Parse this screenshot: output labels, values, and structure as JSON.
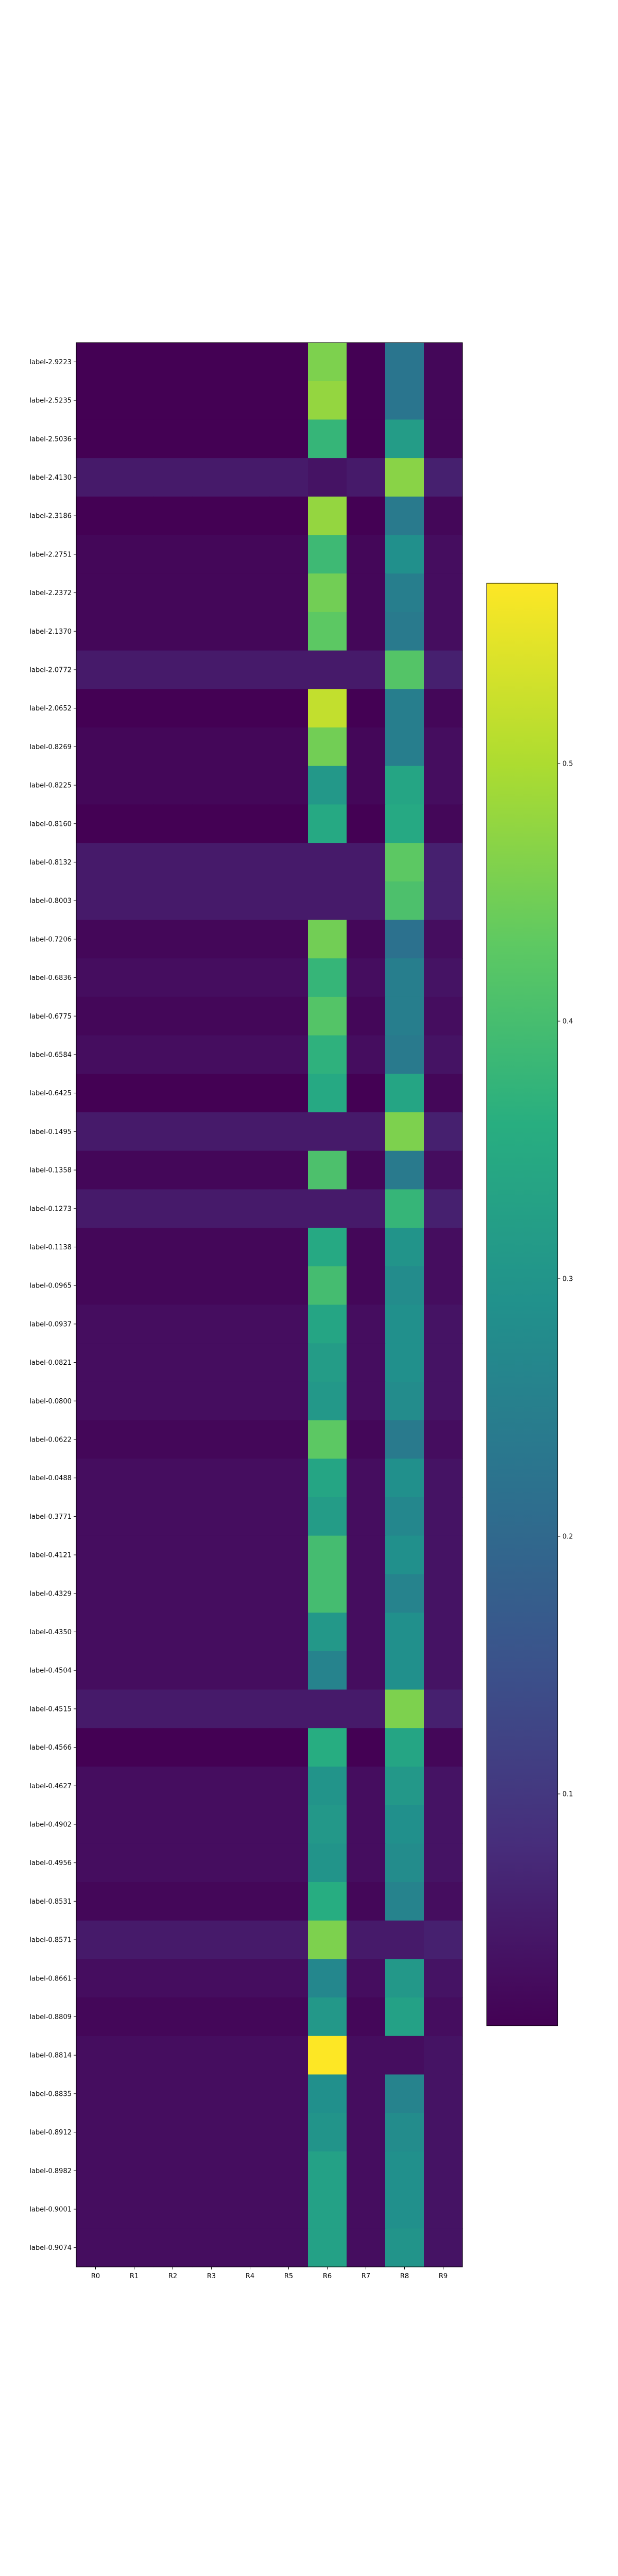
{
  "chart_data": {
    "type": "heatmap",
    "title": "",
    "xlabel": "",
    "ylabel": "",
    "x_categories": [
      "R0",
      "R1",
      "R2",
      "R3",
      "R4",
      "R5",
      "R6",
      "R7",
      "R8",
      "R9"
    ],
    "y_categories": [
      "label-2.9223",
      "label-2.5235",
      "label-2.5036",
      "label-2.4130",
      "label-2.3186",
      "label-2.2751",
      "label-2.2372",
      "label-2.1370",
      "label-2.0772",
      "label-2.0652",
      "label-0.8269",
      "label-0.8225",
      "label-0.8160",
      "label-0.8132",
      "label-0.8003",
      "label-0.7206",
      "label-0.6836",
      "label-0.6775",
      "label-0.6584",
      "label-0.6425",
      "label-0.1495",
      "label-0.1358",
      "label-0.1273",
      "label-0.1138",
      "label-0.0965",
      "label-0.0937",
      "label-0.0821",
      "label-0.0800",
      "label-0.0622",
      "label-0.0488",
      "label-0.3771",
      "label-0.4121",
      "label-0.4329",
      "label-0.4350",
      "label-0.4504",
      "label-0.4515",
      "label-0.4566",
      "label-0.4627",
      "label-0.4902",
      "label-0.4956",
      "label-0.8531",
      "label-0.8571",
      "label-0.8661",
      "label-0.8809",
      "label-0.8814",
      "label-0.8835",
      "label-0.8912",
      "label-0.8982",
      "label-0.9001",
      "label-0.9074"
    ],
    "values": [
      [
        0.01,
        0.01,
        0.01,
        0.01,
        0.01,
        0.01,
        0.46,
        0.01,
        0.23,
        0.02
      ],
      [
        0.01,
        0.01,
        0.01,
        0.01,
        0.01,
        0.01,
        0.48,
        0.01,
        0.23,
        0.02
      ],
      [
        0.01,
        0.01,
        0.01,
        0.01,
        0.01,
        0.01,
        0.38,
        0.01,
        0.32,
        0.02
      ],
      [
        0.05,
        0.05,
        0.05,
        0.05,
        0.05,
        0.05,
        0.04,
        0.05,
        0.47,
        0.06
      ],
      [
        0.01,
        0.01,
        0.01,
        0.01,
        0.01,
        0.01,
        0.48,
        0.01,
        0.24,
        0.02
      ],
      [
        0.02,
        0.02,
        0.02,
        0.02,
        0.02,
        0.02,
        0.39,
        0.02,
        0.29,
        0.03
      ],
      [
        0.02,
        0.02,
        0.02,
        0.02,
        0.02,
        0.02,
        0.45,
        0.02,
        0.25,
        0.03
      ],
      [
        0.02,
        0.02,
        0.02,
        0.02,
        0.02,
        0.02,
        0.43,
        0.02,
        0.24,
        0.03
      ],
      [
        0.05,
        0.05,
        0.05,
        0.05,
        0.05,
        0.05,
        0.05,
        0.05,
        0.42,
        0.06
      ],
      [
        0.01,
        0.01,
        0.01,
        0.01,
        0.01,
        0.01,
        0.52,
        0.01,
        0.25,
        0.02
      ],
      [
        0.02,
        0.02,
        0.02,
        0.02,
        0.02,
        0.02,
        0.45,
        0.02,
        0.25,
        0.03
      ],
      [
        0.02,
        0.02,
        0.02,
        0.02,
        0.02,
        0.02,
        0.31,
        0.02,
        0.34,
        0.03
      ],
      [
        0.01,
        0.01,
        0.01,
        0.01,
        0.01,
        0.01,
        0.35,
        0.01,
        0.35,
        0.02
      ],
      [
        0.05,
        0.05,
        0.05,
        0.05,
        0.05,
        0.05,
        0.05,
        0.05,
        0.43,
        0.06
      ],
      [
        0.05,
        0.05,
        0.05,
        0.05,
        0.05,
        0.05,
        0.05,
        0.05,
        0.41,
        0.06
      ],
      [
        0.02,
        0.02,
        0.02,
        0.02,
        0.02,
        0.02,
        0.45,
        0.02,
        0.22,
        0.03
      ],
      [
        0.03,
        0.03,
        0.03,
        0.03,
        0.03,
        0.03,
        0.38,
        0.03,
        0.25,
        0.04
      ],
      [
        0.02,
        0.02,
        0.02,
        0.02,
        0.02,
        0.02,
        0.42,
        0.02,
        0.25,
        0.03
      ],
      [
        0.03,
        0.03,
        0.03,
        0.03,
        0.03,
        0.03,
        0.37,
        0.03,
        0.24,
        0.04
      ],
      [
        0.01,
        0.01,
        0.01,
        0.01,
        0.01,
        0.01,
        0.35,
        0.01,
        0.34,
        0.02
      ],
      [
        0.05,
        0.05,
        0.05,
        0.05,
        0.05,
        0.05,
        0.05,
        0.05,
        0.46,
        0.06
      ],
      [
        0.02,
        0.02,
        0.02,
        0.02,
        0.02,
        0.02,
        0.41,
        0.02,
        0.24,
        0.03
      ],
      [
        0.05,
        0.05,
        0.05,
        0.05,
        0.05,
        0.05,
        0.05,
        0.05,
        0.38,
        0.06
      ],
      [
        0.02,
        0.02,
        0.02,
        0.02,
        0.02,
        0.02,
        0.35,
        0.02,
        0.3,
        0.03
      ],
      [
        0.02,
        0.02,
        0.02,
        0.02,
        0.02,
        0.02,
        0.4,
        0.02,
        0.28,
        0.03
      ],
      [
        0.03,
        0.03,
        0.03,
        0.03,
        0.03,
        0.03,
        0.34,
        0.03,
        0.29,
        0.04
      ],
      [
        0.03,
        0.03,
        0.03,
        0.03,
        0.03,
        0.03,
        0.32,
        0.03,
        0.29,
        0.04
      ],
      [
        0.03,
        0.03,
        0.03,
        0.03,
        0.03,
        0.03,
        0.31,
        0.03,
        0.28,
        0.04
      ],
      [
        0.02,
        0.02,
        0.02,
        0.02,
        0.02,
        0.02,
        0.43,
        0.02,
        0.24,
        0.03
      ],
      [
        0.03,
        0.03,
        0.03,
        0.03,
        0.03,
        0.03,
        0.34,
        0.03,
        0.29,
        0.04
      ],
      [
        0.03,
        0.03,
        0.03,
        0.03,
        0.03,
        0.03,
        0.32,
        0.03,
        0.27,
        0.04
      ],
      [
        0.03,
        0.03,
        0.03,
        0.03,
        0.03,
        0.03,
        0.4,
        0.03,
        0.29,
        0.04
      ],
      [
        0.03,
        0.03,
        0.03,
        0.03,
        0.03,
        0.03,
        0.4,
        0.03,
        0.26,
        0.04
      ],
      [
        0.03,
        0.03,
        0.03,
        0.03,
        0.03,
        0.03,
        0.31,
        0.03,
        0.29,
        0.04
      ],
      [
        0.03,
        0.03,
        0.03,
        0.03,
        0.03,
        0.03,
        0.26,
        0.03,
        0.29,
        0.04
      ],
      [
        0.05,
        0.05,
        0.05,
        0.05,
        0.05,
        0.05,
        0.05,
        0.05,
        0.46,
        0.06
      ],
      [
        0.01,
        0.01,
        0.01,
        0.01,
        0.01,
        0.01,
        0.36,
        0.01,
        0.34,
        0.02
      ],
      [
        0.03,
        0.03,
        0.03,
        0.03,
        0.03,
        0.03,
        0.3,
        0.03,
        0.31,
        0.04
      ],
      [
        0.03,
        0.03,
        0.03,
        0.03,
        0.03,
        0.03,
        0.31,
        0.03,
        0.29,
        0.04
      ],
      [
        0.03,
        0.03,
        0.03,
        0.03,
        0.03,
        0.03,
        0.3,
        0.03,
        0.28,
        0.04
      ],
      [
        0.02,
        0.02,
        0.02,
        0.02,
        0.02,
        0.02,
        0.36,
        0.02,
        0.26,
        0.03
      ],
      [
        0.05,
        0.05,
        0.05,
        0.05,
        0.05,
        0.05,
        0.46,
        0.05,
        0.05,
        0.06
      ],
      [
        0.03,
        0.03,
        0.03,
        0.03,
        0.03,
        0.03,
        0.27,
        0.03,
        0.31,
        0.04
      ],
      [
        0.02,
        0.02,
        0.02,
        0.02,
        0.02,
        0.02,
        0.31,
        0.02,
        0.33,
        0.03
      ],
      [
        0.03,
        0.03,
        0.03,
        0.03,
        0.03,
        0.03,
        0.57,
        0.03,
        0.03,
        0.04
      ],
      [
        0.03,
        0.03,
        0.03,
        0.03,
        0.03,
        0.03,
        0.29,
        0.03,
        0.26,
        0.04
      ],
      [
        0.03,
        0.03,
        0.03,
        0.03,
        0.03,
        0.03,
        0.3,
        0.03,
        0.28,
        0.04
      ],
      [
        0.03,
        0.03,
        0.03,
        0.03,
        0.03,
        0.03,
        0.33,
        0.03,
        0.29,
        0.04
      ],
      [
        0.03,
        0.03,
        0.03,
        0.03,
        0.03,
        0.03,
        0.33,
        0.03,
        0.29,
        0.04
      ],
      [
        0.03,
        0.03,
        0.03,
        0.03,
        0.03,
        0.03,
        0.33,
        0.03,
        0.3,
        0.04
      ]
    ],
    "colormap": "viridis",
    "colorbar": {
      "range": [
        0.01,
        0.57
      ],
      "ticks": [
        0.1,
        0.2,
        0.3,
        0.4,
        0.5
      ],
      "tick_labels": [
        "0.1",
        "0.2",
        "0.3",
        "0.4",
        "0.5"
      ]
    },
    "grid": false,
    "legend": "none"
  }
}
